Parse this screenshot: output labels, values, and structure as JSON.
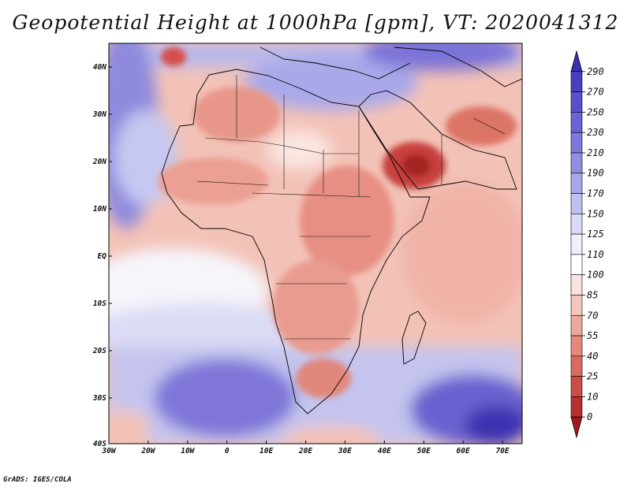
{
  "title": "Geopotential Height at 1000hPa [gpm], VT: 2020041312",
  "credit": "GrADS: IGES/COLA",
  "lon_ticks": [
    "30W",
    "20W",
    "10W",
    "0",
    "10E",
    "20E",
    "30E",
    "40E",
    "50E",
    "60E",
    "70E"
  ],
  "lat_ticks": [
    "40N",
    "30N",
    "20N",
    "10N",
    "EQ",
    "10S",
    "20S",
    "30S",
    "40S"
  ],
  "colorbar": {
    "labels": [
      "290",
      "270",
      "250",
      "230",
      "210",
      "190",
      "170",
      "150",
      "125",
      "110",
      "100",
      "85",
      "70",
      "55",
      "40",
      "25",
      "10",
      "0"
    ],
    "colors": [
      "#3b2fb0",
      "#4a3fc0",
      "#5b50cc",
      "#6c62d6",
      "#7f77dc",
      "#928de2",
      "#a8a6e8",
      "#c0c0ef",
      "#d9daf6",
      "#eef0fb",
      "#ffffff",
      "#fbe2dc",
      "#f6c6bd",
      "#eea79c",
      "#e4887d",
      "#d96a61",
      "#cc4d47",
      "#b8302e",
      "#9e1c1c"
    ]
  }
}
